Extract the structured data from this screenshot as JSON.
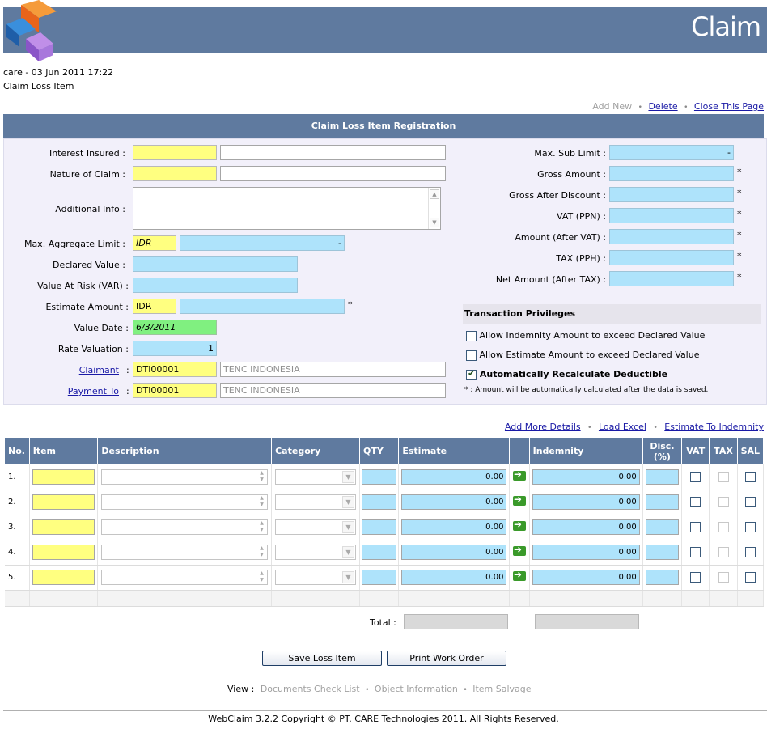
{
  "header": {
    "title": "Claim"
  },
  "meta": {
    "user_line": "care - 03 Jun 2011 17:22",
    "page_name": "Claim Loss Item"
  },
  "top_links": {
    "add_new": "Add New",
    "delete": "Delete",
    "close": "Close This Page",
    "sep": "•"
  },
  "section_title": "Claim Loss Item Registration",
  "form": {
    "interest_insured_label": "Interest Insured :",
    "nature_of_claim_label": "Nature of Claim :",
    "additional_info_label": "Additional Info :",
    "max_aggregate_label": "Max. Aggregate Limit :",
    "max_aggregate_currency": "IDR",
    "max_aggregate_value": "-",
    "declared_value_label": "Declared Value :",
    "var_label": "Value At Risk (VAR) :",
    "estimate_amount_label": "Estimate Amount :",
    "estimate_currency": "IDR",
    "value_date_label": "Value Date :",
    "value_date": "6/3/2011",
    "rate_valuation_label": "Rate Valuation :",
    "rate_valuation": "1",
    "claimant_label": "Claimant",
    "claimant_code": "DTI00001",
    "claimant_name": "TENC INDONESIA",
    "payment_to_label": "Payment To",
    "payment_to_code": "DTI00001",
    "payment_to_name": "TENC INDONESIA",
    "colon": ":",
    "star": "*"
  },
  "right_form": {
    "max_sub_limit_label": "Max. Sub Limit :",
    "max_sub_limit_value": "-",
    "gross_amount_label": "Gross Amount :",
    "gross_after_discount_label": "Gross After Discount :",
    "vat_label": "VAT (PPN) :",
    "amount_after_vat_label": "Amount (After VAT) :",
    "tax_label": "TAX (PPH) :",
    "net_amount_label": "Net Amount (After TAX) :"
  },
  "privileges": {
    "title": "Transaction Privileges",
    "indemnity_exceed": "Allow Indemnity Amount to exceed Declared Value",
    "estimate_exceed": "Allow Estimate Amount to exceed Declared Value",
    "auto_recalc": "Automatically Recalculate Deductible",
    "note": "* : Amount will be automatically calculated after the data is saved."
  },
  "detail_links": {
    "add_more": "Add More Details",
    "load_excel": "Load Excel",
    "estimate_to_indemnity": "Estimate To Indemnity",
    "sep": "•"
  },
  "table": {
    "headers": {
      "no": "No.",
      "item": "Item",
      "description": "Description",
      "category": "Category",
      "qty": "QTY",
      "estimate": "Estimate",
      "indemnity": "Indemnity",
      "disc": "Disc. (%)",
      "vat": "VAT",
      "tax": "TAX",
      "sal": "SAL"
    },
    "rows": [
      {
        "no": "1.",
        "estimate": "0.00",
        "indemnity": "0.00"
      },
      {
        "no": "2.",
        "estimate": "0.00",
        "indemnity": "0.00"
      },
      {
        "no": "3.",
        "estimate": "0.00",
        "indemnity": "0.00"
      },
      {
        "no": "4.",
        "estimate": "0.00",
        "indemnity": "0.00"
      },
      {
        "no": "5.",
        "estimate": "0.00",
        "indemnity": "0.00"
      }
    ]
  },
  "total_label": "Total :",
  "buttons": {
    "save": "Save Loss Item",
    "print": "Print Work Order"
  },
  "view": {
    "label": "View :",
    "docs": "Documents Check List",
    "object": "Object Information",
    "salvage": "Item Salvage",
    "sep": "•"
  },
  "footer": "WebClaim 3.2.2 Copyright © PT. CARE Technologies 2011. All Rights Reserved."
}
